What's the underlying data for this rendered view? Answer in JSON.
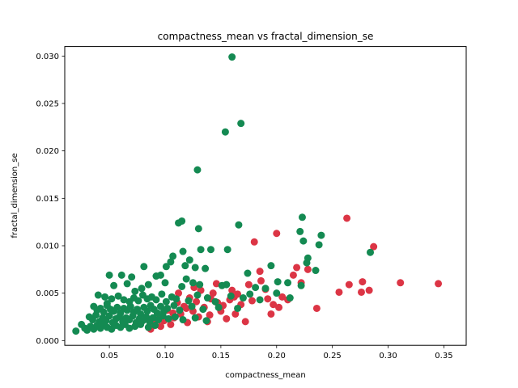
{
  "chart_data": {
    "type": "scatter",
    "title": "compactness_mean vs fractal_dimension_se",
    "xlabel": "compactness_mean",
    "ylabel": "fractal_dimension_se",
    "xlim": [
      0.01,
      0.37
    ],
    "ylim": [
      -0.0005,
      0.031
    ],
    "x_ticks": [
      0.05,
      0.1,
      0.15,
      0.2,
      0.25,
      0.3,
      0.35
    ],
    "x_tick_labels": [
      "0.05",
      "0.10",
      "0.15",
      "0.20",
      "0.25",
      "0.30",
      "0.35"
    ],
    "y_ticks": [
      0.0,
      0.005,
      0.01,
      0.015,
      0.02,
      0.025,
      0.03
    ],
    "y_tick_labels": [
      "0.000",
      "0.005",
      "0.010",
      "0.015",
      "0.020",
      "0.025",
      "0.030"
    ],
    "grid": false,
    "legend": "none",
    "series": [
      {
        "color": "#dc3545",
        "points": [
          [
            0.256,
            0.0051
          ],
          [
            0.265,
            0.0059
          ],
          [
            0.276,
            0.0051
          ],
          [
            0.277,
            0.0062
          ],
          [
            0.283,
            0.0053
          ],
          [
            0.287,
            0.0099
          ],
          [
            0.311,
            0.0061
          ],
          [
            0.345,
            0.006
          ],
          [
            0.263,
            0.0129
          ],
          [
            0.236,
            0.0034
          ],
          [
            0.2,
            0.0113
          ],
          [
            0.18,
            0.0104
          ],
          [
            0.185,
            0.0073
          ],
          [
            0.175,
            0.0059
          ],
          [
            0.19,
            0.0054
          ],
          [
            0.192,
            0.0044
          ],
          [
            0.197,
            0.0038
          ],
          [
            0.205,
            0.0046
          ],
          [
            0.21,
            0.0043
          ],
          [
            0.215,
            0.0069
          ],
          [
            0.218,
            0.0077
          ],
          [
            0.222,
            0.0061
          ],
          [
            0.228,
            0.0075
          ],
          [
            0.195,
            0.0028
          ],
          [
            0.172,
            0.002
          ],
          [
            0.168,
            0.0038
          ],
          [
            0.165,
            0.0049
          ],
          [
            0.16,
            0.0053
          ],
          [
            0.158,
            0.0043
          ],
          [
            0.155,
            0.0023
          ],
          [
            0.15,
            0.0031
          ],
          [
            0.147,
            0.004
          ],
          [
            0.143,
            0.005
          ],
          [
            0.14,
            0.0027
          ],
          [
            0.138,
            0.002
          ],
          [
            0.135,
            0.0035
          ],
          [
            0.132,
            0.0053
          ],
          [
            0.13,
            0.0025
          ],
          [
            0.128,
            0.0041
          ],
          [
            0.125,
            0.0031
          ],
          [
            0.122,
            0.0045
          ],
          [
            0.12,
            0.0019
          ],
          [
            0.117,
            0.0036
          ],
          [
            0.114,
            0.0028
          ],
          [
            0.111,
            0.004
          ],
          [
            0.108,
            0.0024
          ],
          [
            0.105,
            0.0017
          ],
          [
            0.102,
            0.0032
          ],
          [
            0.099,
            0.0021
          ],
          [
            0.096,
            0.0015
          ],
          [
            0.093,
            0.0026
          ],
          [
            0.09,
            0.0018
          ],
          [
            0.087,
            0.0012
          ],
          [
            0.112,
            0.005
          ],
          [
            0.126,
            0.0056
          ],
          [
            0.146,
            0.006
          ],
          [
            0.162,
            0.0046
          ],
          [
            0.178,
            0.0042
          ],
          [
            0.186,
            0.0063
          ],
          [
            0.202,
            0.0035
          ],
          [
            0.163,
            0.0028
          ],
          [
            0.152,
            0.0037
          ],
          [
            0.141,
            0.0044
          ],
          [
            0.119,
            0.0034
          ],
          [
            0.107,
            0.0029
          ]
        ]
      },
      {
        "color": "#148a52",
        "points": [
          [
            0.16,
            0.0299
          ],
          [
            0.154,
            0.022
          ],
          [
            0.168,
            0.0229
          ],
          [
            0.129,
            0.018
          ],
          [
            0.223,
            0.013
          ],
          [
            0.24,
            0.0111
          ],
          [
            0.115,
            0.0126
          ],
          [
            0.112,
            0.0124
          ],
          [
            0.166,
            0.0122
          ],
          [
            0.13,
            0.0118
          ],
          [
            0.221,
            0.0115
          ],
          [
            0.224,
            0.0105
          ],
          [
            0.238,
            0.0101
          ],
          [
            0.284,
            0.0093
          ],
          [
            0.132,
            0.0096
          ],
          [
            0.116,
            0.0094
          ],
          [
            0.141,
            0.0096
          ],
          [
            0.156,
            0.0096
          ],
          [
            0.107,
            0.0089
          ],
          [
            0.122,
            0.0085
          ],
          [
            0.228,
            0.0087
          ],
          [
            0.227,
            0.0082
          ],
          [
            0.081,
            0.0078
          ],
          [
            0.101,
            0.0078
          ],
          [
            0.127,
            0.0077
          ],
          [
            0.105,
            0.0083
          ],
          [
            0.118,
            0.0079
          ],
          [
            0.096,
            0.0069
          ],
          [
            0.092,
            0.0068
          ],
          [
            0.05,
            0.0069
          ],
          [
            0.061,
            0.0069
          ],
          [
            0.07,
            0.0067
          ],
          [
            0.136,
            0.0076
          ],
          [
            0.174,
            0.0071
          ],
          [
            0.195,
            0.0079
          ],
          [
            0.235,
            0.0074
          ],
          [
            0.21,
            0.0061
          ],
          [
            0.222,
            0.0058
          ],
          [
            0.054,
            0.0058
          ],
          [
            0.066,
            0.006
          ],
          [
            0.085,
            0.0059
          ],
          [
            0.1,
            0.0061
          ],
          [
            0.115,
            0.0057
          ],
          [
            0.131,
            0.0059
          ],
          [
            0.151,
            0.0058
          ],
          [
            0.181,
            0.0056
          ],
          [
            0.19,
            0.0055
          ],
          [
            0.2,
            0.005
          ],
          [
            0.212,
            0.0045
          ],
          [
            0.04,
            0.0048
          ],
          [
            0.046,
            0.0046
          ],
          [
            0.052,
            0.0044
          ],
          [
            0.058,
            0.0047
          ],
          [
            0.063,
            0.0043
          ],
          [
            0.068,
            0.0041
          ],
          [
            0.072,
            0.0045
          ],
          [
            0.076,
            0.0042
          ],
          [
            0.08,
            0.0048
          ],
          [
            0.084,
            0.0044
          ],
          [
            0.088,
            0.0046
          ],
          [
            0.092,
            0.0043
          ],
          [
            0.097,
            0.0049
          ],
          [
            0.101,
            0.0041
          ],
          [
            0.106,
            0.0046
          ],
          [
            0.11,
            0.0044
          ],
          [
            0.121,
            0.0042
          ],
          [
            0.129,
            0.0048
          ],
          [
            0.138,
            0.0045
          ],
          [
            0.145,
            0.0041
          ],
          [
            0.159,
            0.0047
          ],
          [
            0.17,
            0.0045
          ],
          [
            0.185,
            0.0043
          ],
          [
            0.036,
            0.0036
          ],
          [
            0.039,
            0.0032
          ],
          [
            0.042,
            0.0034
          ],
          [
            0.045,
            0.003
          ],
          [
            0.048,
            0.0037
          ],
          [
            0.051,
            0.0033
          ],
          [
            0.054,
            0.0031
          ],
          [
            0.057,
            0.0035
          ],
          [
            0.06,
            0.0029
          ],
          [
            0.063,
            0.0034
          ],
          [
            0.066,
            0.0032
          ],
          [
            0.069,
            0.0036
          ],
          [
            0.072,
            0.003
          ],
          [
            0.075,
            0.0033
          ],
          [
            0.078,
            0.0028
          ],
          [
            0.081,
            0.0035
          ],
          [
            0.084,
            0.0031
          ],
          [
            0.087,
            0.0037
          ],
          [
            0.09,
            0.0033
          ],
          [
            0.093,
            0.0029
          ],
          [
            0.096,
            0.0036
          ],
          [
            0.099,
            0.0031
          ],
          [
            0.102,
            0.0034
          ],
          [
            0.108,
            0.0037
          ],
          [
            0.113,
            0.0032
          ],
          [
            0.124,
            0.0036
          ],
          [
            0.134,
            0.0033
          ],
          [
            0.148,
            0.0035
          ],
          [
            0.165,
            0.0034
          ],
          [
            0.032,
            0.0025
          ],
          [
            0.035,
            0.0022
          ],
          [
            0.038,
            0.0027
          ],
          [
            0.041,
            0.002
          ],
          [
            0.044,
            0.0024
          ],
          [
            0.047,
            0.0021
          ],
          [
            0.05,
            0.0026
          ],
          [
            0.053,
            0.0019
          ],
          [
            0.056,
            0.0023
          ],
          [
            0.059,
            0.0025
          ],
          [
            0.062,
            0.002
          ],
          [
            0.065,
            0.0024
          ],
          [
            0.068,
            0.0022
          ],
          [
            0.071,
            0.0026
          ],
          [
            0.074,
            0.0019
          ],
          [
            0.077,
            0.0023
          ],
          [
            0.08,
            0.0021
          ],
          [
            0.083,
            0.0025
          ],
          [
            0.086,
            0.002
          ],
          [
            0.089,
            0.0024
          ],
          [
            0.094,
            0.0022
          ],
          [
            0.098,
            0.0026
          ],
          [
            0.103,
            0.0023
          ],
          [
            0.109,
            0.0025
          ],
          [
            0.116,
            0.0022
          ],
          [
            0.127,
            0.0024
          ],
          [
            0.137,
            0.0021
          ],
          [
            0.02,
            0.001
          ],
          [
            0.025,
            0.0017
          ],
          [
            0.028,
            0.0013
          ],
          [
            0.03,
            0.0011
          ],
          [
            0.033,
            0.0015
          ],
          [
            0.036,
            0.0012
          ],
          [
            0.039,
            0.0016
          ],
          [
            0.042,
            0.0013
          ],
          [
            0.045,
            0.0017
          ],
          [
            0.048,
            0.0014
          ],
          [
            0.052,
            0.0012
          ],
          [
            0.056,
            0.0016
          ],
          [
            0.06,
            0.0014
          ],
          [
            0.064,
            0.0017
          ],
          [
            0.068,
            0.0013
          ],
          [
            0.073,
            0.0015
          ],
          [
            0.078,
            0.0017
          ],
          [
            0.085,
            0.0014
          ],
          [
            0.091,
            0.0016
          ],
          [
            0.155,
            0.0059
          ],
          [
            0.201,
            0.0062
          ],
          [
            0.176,
            0.0049
          ],
          [
            0.119,
            0.0065
          ],
          [
            0.125,
            0.0061
          ],
          [
            0.048,
            0.0039
          ],
          [
            0.073,
            0.0052
          ],
          [
            0.079,
            0.0055
          ]
        ]
      }
    ]
  }
}
